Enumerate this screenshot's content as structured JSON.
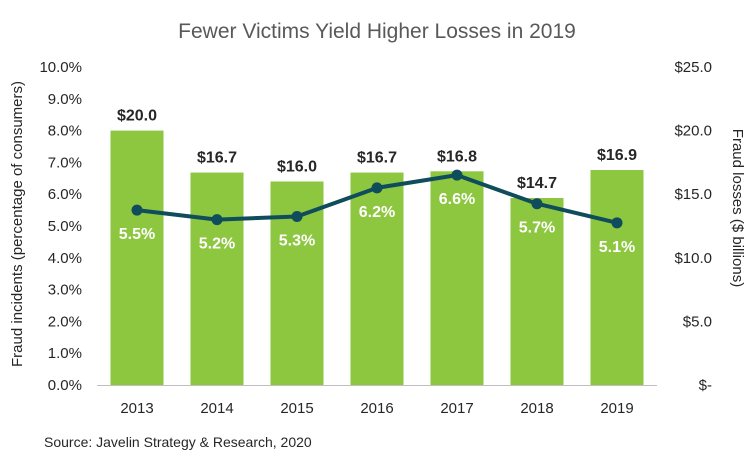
{
  "chart_data": {
    "type": "bar",
    "title": "Fewer Victims Yield Higher Losses in 2019",
    "categories": [
      "2013",
      "2014",
      "2015",
      "2016",
      "2017",
      "2018",
      "2019"
    ],
    "series": [
      {
        "name": "Fraud losses",
        "type": "bar",
        "axis": "right",
        "values": [
          20.0,
          16.7,
          16.0,
          16.7,
          16.8,
          14.7,
          16.9
        ],
        "labels": [
          "$20.0",
          "$16.7",
          "$16.0",
          "$16.7",
          "$16.8",
          "$14.7",
          "$16.9"
        ],
        "color": "#8dc63f"
      },
      {
        "name": "Fraud incidents",
        "type": "line",
        "axis": "left",
        "values": [
          5.5,
          5.2,
          5.3,
          6.2,
          6.6,
          5.7,
          5.1
        ],
        "labels": [
          "5.5%",
          "5.2%",
          "5.3%",
          "6.2%",
          "6.6%",
          "5.7%",
          "5.1%"
        ],
        "color": "#0f4c5c"
      }
    ],
    "ylabel": "Fraud incidents (percentage of consumers)",
    "y2label": "Fraud losses ($ billions)",
    "ylim": [
      0,
      10
    ],
    "y2lim": [
      0,
      25
    ],
    "yticks": [
      {
        "value": 0,
        "label": "0.0%"
      },
      {
        "value": 1,
        "label": "1.0%"
      },
      {
        "value": 2,
        "label": "2.0%"
      },
      {
        "value": 3,
        "label": "3.0%"
      },
      {
        "value": 4,
        "label": "4.0%"
      },
      {
        "value": 5,
        "label": "5.0%"
      },
      {
        "value": 6,
        "label": "6.0%"
      },
      {
        "value": 7,
        "label": "7.0%"
      },
      {
        "value": 8,
        "label": "8.0%"
      },
      {
        "value": 9,
        "label": "9.0%"
      },
      {
        "value": 10,
        "label": "10.0%"
      }
    ],
    "y2ticks": [
      {
        "value": 0,
        "label": "$-"
      },
      {
        "value": 5,
        "label": "$5.0"
      },
      {
        "value": 10,
        "label": "$10.0"
      },
      {
        "value": 15,
        "label": "$15.0"
      },
      {
        "value": 20,
        "label": "$20.0"
      },
      {
        "value": 25,
        "label": "$25.0"
      }
    ],
    "grid": false,
    "source": "Source:  Javelin Strategy & Research, 2020",
    "axis_color": "#bfbfbf"
  }
}
